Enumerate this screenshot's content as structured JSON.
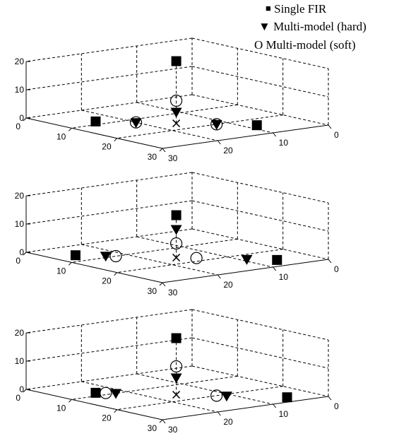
{
  "legend": {
    "items": [
      {
        "marker": "■",
        "label": "Single FIR"
      },
      {
        "marker": "▼",
        "label": "Multi-model  (hard)"
      },
      {
        "marker": "O",
        "label": "Multi-model (soft)"
      }
    ]
  },
  "chart_data": [
    {
      "type": "scatter3d",
      "zlim": [
        0,
        20
      ],
      "xlim": [
        0,
        30
      ],
      "ylim": [
        0,
        30
      ],
      "z_ticks": [
        "0",
        "10",
        "20"
      ],
      "x_ticks": [
        "0",
        "10",
        "20",
        "30"
      ],
      "y_ticks": [
        "30",
        "20",
        "10",
        "0"
      ],
      "grid": true,
      "series": [
        {
          "name": "Single FIR",
          "marker": "square",
          "points": [
            {
              "x": 8,
              "y": 24,
              "z": 0
            },
            {
              "x": 16,
              "y": 16,
              "z": 22
            },
            {
              "x": 24,
              "y": 8,
              "z": 0
            }
          ]
        },
        {
          "name": "Multi-model  (hard)",
          "marker": "triangle-down",
          "points": [
            {
              "x": 12,
              "y": 20,
              "z": 0
            },
            {
              "x": 16,
              "y": 16,
              "z": 4
            },
            {
              "x": 20,
              "y": 12,
              "z": 0
            }
          ]
        },
        {
          "name": "Multi-model (soft)",
          "marker": "circle",
          "points": [
            {
              "x": 12,
              "y": 20,
              "z": 0
            },
            {
              "x": 16,
              "y": 16,
              "z": 8
            },
            {
              "x": 20,
              "y": 12,
              "z": 0
            }
          ]
        },
        {
          "marker": "x",
          "points": [
            {
              "x": 16,
              "y": 16,
              "z": 0
            }
          ]
        }
      ]
    },
    {
      "type": "scatter3d",
      "zlim": [
        0,
        20
      ],
      "xlim": [
        0,
        30
      ],
      "ylim": [
        0,
        30
      ],
      "z_ticks": [
        "0",
        "10",
        "20"
      ],
      "x_ticks": [
        "0",
        "10",
        "20",
        "30"
      ],
      "y_ticks": [
        "30",
        "20",
        "10",
        "0"
      ],
      "grid": true,
      "series": [
        {
          "name": "Single FIR",
          "marker": "square",
          "points": [
            {
              "x": 6,
              "y": 26,
              "z": 0
            },
            {
              "x": 16,
              "y": 16,
              "z": 15
            },
            {
              "x": 26,
              "y": 6,
              "z": 0
            }
          ]
        },
        {
          "name": "Multi-model  (hard)",
          "marker": "triangle-down",
          "points": [
            {
              "x": 9,
              "y": 23,
              "z": 0
            },
            {
              "x": 16,
              "y": 16,
              "z": 10
            },
            {
              "x": 23,
              "y": 9,
              "z": 0
            }
          ]
        },
        {
          "name": "Multi-model (soft)",
          "marker": "circle",
          "points": [
            {
              "x": 10,
              "y": 22,
              "z": 0
            },
            {
              "x": 16,
              "y": 16,
              "z": 5
            },
            {
              "x": 18,
              "y": 14,
              "z": 0
            }
          ]
        },
        {
          "marker": "x",
          "points": [
            {
              "x": 16,
              "y": 16,
              "z": 0
            }
          ]
        }
      ]
    },
    {
      "type": "scatter3d",
      "zlim": [
        0,
        20
      ],
      "xlim": [
        0,
        30
      ],
      "ylim": [
        0,
        30
      ],
      "z_ticks": [
        "0",
        "10",
        "20"
      ],
      "x_ticks": [
        "0",
        "10",
        "20",
        "30"
      ],
      "y_ticks": [
        "30",
        "20",
        "10",
        "0"
      ],
      "grid": true,
      "series": [
        {
          "name": "Single FIR",
          "marker": "square",
          "points": [
            {
              "x": 8,
              "y": 24,
              "z": 0
            },
            {
              "x": 16,
              "y": 16,
              "z": 20
            },
            {
              "x": 27,
              "y": 5,
              "z": 0
            }
          ]
        },
        {
          "name": "Multi-model  (hard)",
          "marker": "triangle-down",
          "points": [
            {
              "x": 10,
              "y": 22,
              "z": 0
            },
            {
              "x": 16,
              "y": 16,
              "z": 6
            },
            {
              "x": 21,
              "y": 11,
              "z": 0
            }
          ]
        },
        {
          "name": "Multi-model (soft)",
          "marker": "circle",
          "points": [
            {
              "x": 9,
              "y": 23,
              "z": 0
            },
            {
              "x": 16,
              "y": 16,
              "z": 10
            },
            {
              "x": 20,
              "y": 12,
              "z": 0
            }
          ]
        },
        {
          "marker": "x",
          "points": [
            {
              "x": 16,
              "y": 16,
              "z": 0
            }
          ]
        }
      ]
    }
  ]
}
